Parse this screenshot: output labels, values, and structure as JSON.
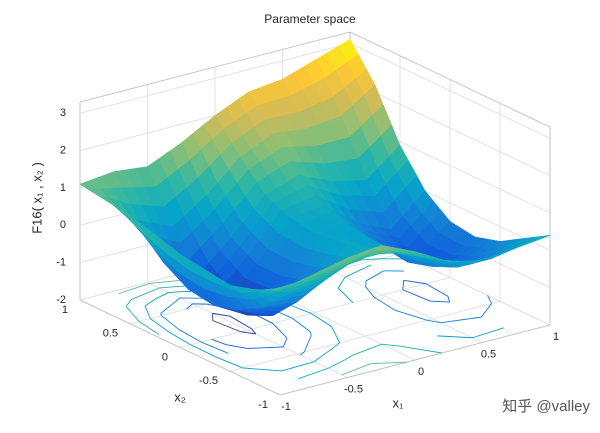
{
  "chart_data": {
    "type": "surface3d",
    "title": "Parameter space",
    "xlabel": "x₁",
    "ylabel": "x₂",
    "zlabel": "F16( x₁ , x₂ )",
    "watermark": "知乎 @valley",
    "x": [
      -1,
      -0.75,
      -0.5,
      -0.25,
      0,
      0.25,
      0.5,
      0.75,
      1
    ],
    "y": [
      -1,
      -0.75,
      -0.5,
      -0.25,
      0,
      0.25,
      0.5,
      0.75,
      1
    ],
    "z": [
      [
        0.8,
        1.0,
        1.2,
        1.3,
        0.9,
        0.4,
        0.2,
        0.3,
        0.4
      ],
      [
        0.5,
        0.2,
        0.3,
        0.6,
        0.6,
        0.2,
        -0.3,
        -0.3,
        0.0
      ],
      [
        0.3,
        -0.5,
        -0.6,
        -0.1,
        0.3,
        0.0,
        -0.6,
        -0.8,
        -0.4
      ],
      [
        0.4,
        -0.9,
        -1.3,
        -0.6,
        0.2,
        0.0,
        -0.8,
        -1.1,
        -0.6
      ],
      [
        0.5,
        -1.1,
        -1.6,
        -0.8,
        0.1,
        0.1,
        -0.7,
        -1.2,
        -0.5
      ],
      [
        0.7,
        -1.0,
        -1.7,
        -0.8,
        0.2,
        0.3,
        -0.4,
        -0.8,
        0.0
      ],
      [
        0.9,
        -0.6,
        -1.2,
        -0.4,
        0.5,
        0.8,
        0.4,
        0.2,
        0.9
      ],
      [
        1.0,
        0.2,
        -0.2,
        0.4,
        1.2,
        1.6,
        1.5,
        1.6,
        2.2
      ],
      [
        1.1,
        1.2,
        1.1,
        1.5,
        2.0,
        2.4,
        2.5,
        2.8,
        3.1
      ]
    ],
    "contour_levels": [
      -1.5,
      -1,
      -0.5,
      0,
      0.5,
      1,
      1.5,
      2,
      2.5,
      3
    ],
    "xlim": [
      -1,
      1
    ],
    "ylim": [
      -1,
      1
    ],
    "zlim": [
      -2,
      3.3
    ],
    "xticks": [
      -1,
      -0.5,
      0,
      0.5,
      1
    ],
    "yticks": [
      -1,
      -0.5,
      0,
      0.5,
      1
    ],
    "zticks": [
      -2,
      -1,
      0,
      1,
      2,
      3
    ],
    "grid": true,
    "colormap": "parula"
  }
}
